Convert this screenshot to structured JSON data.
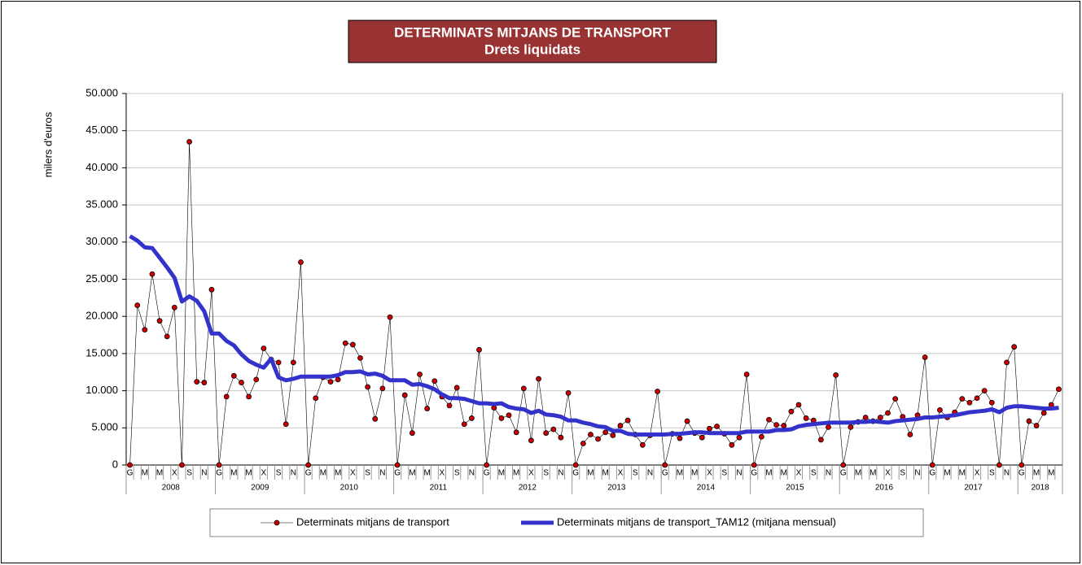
{
  "chart_data": {
    "type": "line",
    "title": "DETERMINATS MITJANS DE TRANSPORT",
    "subtitle": "Drets liquidats",
    "y_label": "milers d'euros",
    "categories": [
      "G",
      null,
      "M",
      null,
      "M",
      null,
      "X",
      null,
      "S",
      null,
      "N",
      null,
      "G",
      null,
      "M",
      null,
      "M",
      null,
      "X",
      null,
      "S",
      null,
      "N",
      null,
      "G",
      null,
      "M",
      null,
      "M",
      null,
      "X",
      null,
      "S",
      null,
      "N",
      null,
      "G",
      null,
      "M",
      null,
      "M",
      null,
      "X",
      null,
      "S",
      null,
      "N",
      null,
      "G",
      null,
      "M",
      null,
      "M",
      null,
      "X",
      null,
      "S",
      null,
      "N",
      null,
      "G",
      null,
      "M",
      null,
      "M",
      null,
      "X",
      null,
      "S",
      null,
      "N",
      null,
      "G",
      null,
      "M",
      null,
      "M",
      null,
      "X",
      null,
      "S",
      null,
      "N",
      null,
      "G",
      null,
      "M",
      null,
      "M",
      null,
      "X",
      null,
      "S",
      null,
      "N",
      null,
      "G",
      null,
      "M",
      null,
      "M",
      null,
      "X",
      null,
      "S",
      null,
      "N",
      null,
      "G",
      null,
      "M",
      null,
      "M",
      null,
      "X",
      null,
      "S",
      null,
      "N",
      null,
      "G",
      null,
      "M",
      null,
      "M",
      null
    ],
    "years": [
      "2008",
      "2009",
      "2010",
      "2011",
      "2012",
      "2013",
      "2014",
      "2015",
      "2016",
      "2017",
      "2018"
    ],
    "series": [
      {
        "name": "Determinats mitjans de transport",
        "color": "#cc0000",
        "marker": true,
        "values": [
          0,
          21500,
          18200,
          25700,
          19400,
          17300,
          21200,
          0,
          43500,
          11200,
          11100,
          23600,
          0,
          9200,
          12000,
          11100,
          9200,
          11500,
          15700,
          14200,
          13800,
          5500,
          13800,
          27300,
          0,
          9000,
          11800,
          11200,
          11500,
          16400,
          16200,
          14400,
          10500,
          6200,
          10300,
          19900,
          0,
          9400,
          4300,
          12200,
          7600,
          11300,
          9200,
          8000,
          10400,
          5500,
          6300,
          15500,
          0,
          7700,
          6300,
          6700,
          4400,
          10300,
          3300,
          11600,
          4300,
          4800,
          3700,
          9700,
          0,
          2900,
          4100,
          3500,
          4400,
          4000,
          5300,
          6000,
          4100,
          2700,
          4000,
          9900,
          0,
          4200,
          3600,
          5900,
          4300,
          3700,
          4900,
          5200,
          4200,
          2700,
          3700,
          12200,
          0,
          3800,
          6100,
          5400,
          5300,
          7200,
          8100,
          6300,
          6000,
          3400,
          5100,
          12100,
          0,
          5100,
          5800,
          6400,
          5900,
          6400,
          7000,
          8900,
          6500,
          4100,
          6700,
          14500,
          0,
          7400,
          6400,
          7100,
          8900,
          8400,
          9000,
          10000,
          8400,
          0,
          13800,
          15900,
          0,
          5900,
          5300,
          7000,
          8100,
          10200
        ]
      },
      {
        "name": "Determinats mitjans de transport_TAM12 (mitjana mensual)",
        "color": "#3333cc",
        "marker": false,
        "values": [
          30800,
          30200,
          29300,
          29200,
          27900,
          26600,
          25200,
          22000,
          22700,
          22100,
          20700,
          17700,
          17700,
          16700,
          16100,
          14900,
          14000,
          13500,
          13100,
          14300,
          11800,
          11400,
          11600,
          11900,
          11900,
          11900,
          11900,
          11900,
          12100,
          12500,
          12500,
          12600,
          12200,
          12300,
          12000,
          11400,
          11400,
          11400,
          10800,
          10900,
          10600,
          10200,
          9500,
          9000,
          9000,
          8900,
          8600,
          8300,
          8300,
          8200,
          8300,
          7800,
          7600,
          7500,
          7000,
          7300,
          6800,
          6700,
          6500,
          6000,
          6000,
          5700,
          5500,
          5200,
          5100,
          4600,
          4600,
          4200,
          4100,
          4100,
          4100,
          4100,
          4100,
          4200,
          4200,
          4300,
          4400,
          4400,
          4300,
          4300,
          4300,
          4300,
          4300,
          4500,
          4500,
          4500,
          4500,
          4700,
          4700,
          4800,
          5200,
          5400,
          5500,
          5600,
          5700,
          5700,
          5700,
          5700,
          5800,
          5800,
          5900,
          5800,
          5700,
          5900,
          6000,
          6100,
          6200,
          6400,
          6400,
          6500,
          6600,
          6700,
          6900,
          7100,
          7200,
          7300,
          7500,
          7100,
          7700,
          7900,
          7900,
          7800,
          7700,
          7600,
          7600,
          7700
        ]
      }
    ],
    "ylim": [
      0,
      50000
    ],
    "yticks": [
      {
        "value": 0,
        "label": "0"
      },
      {
        "value": 5000,
        "label": "5.000"
      },
      {
        "value": 10000,
        "label": "10.000"
      },
      {
        "value": 15000,
        "label": "15.000"
      },
      {
        "value": 20000,
        "label": "20.000"
      },
      {
        "value": 25000,
        "label": "25.000"
      },
      {
        "value": 30000,
        "label": "30.000"
      },
      {
        "value": 35000,
        "label": "35.000"
      },
      {
        "value": 40000,
        "label": "40.000"
      },
      {
        "value": 45000,
        "label": "45.000"
      },
      {
        "value": 50000,
        "label": "50.000"
      }
    ],
    "grid": true,
    "legend": "bottom"
  }
}
